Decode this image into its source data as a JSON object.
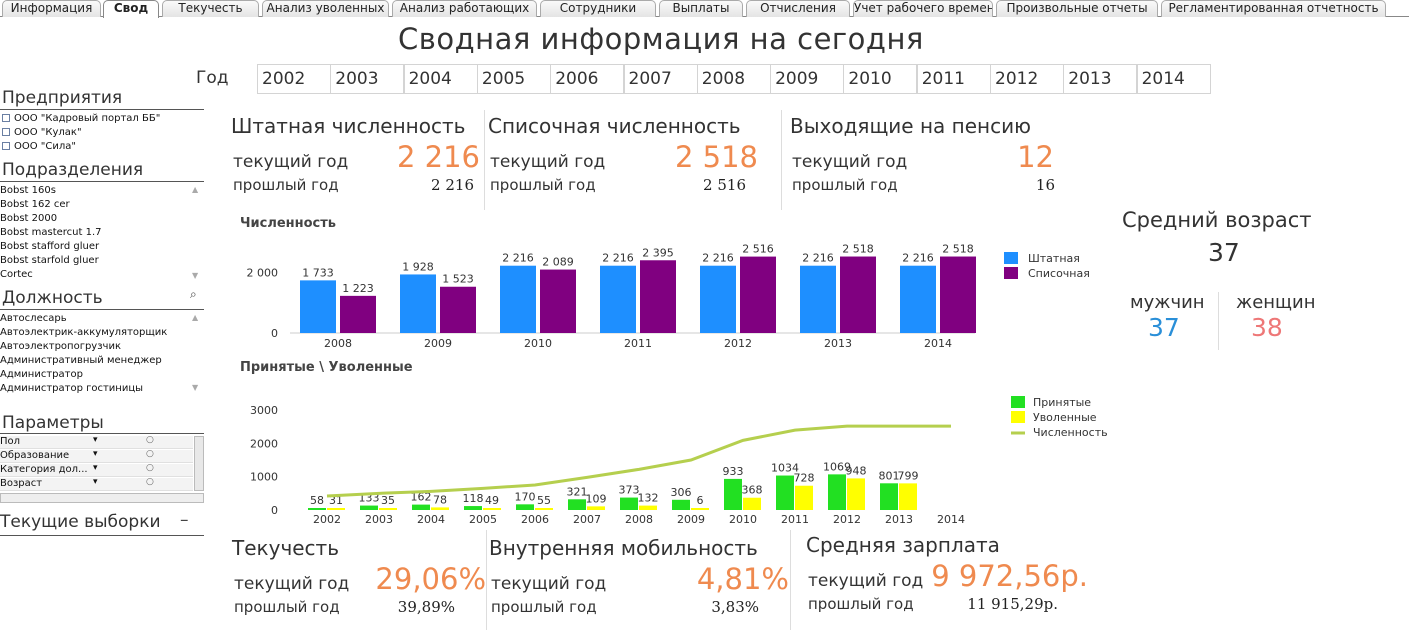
{
  "tabs": [
    "Информация",
    "Свод",
    "Текучесть",
    "Анализ уволенных",
    "Анализ работающих",
    "Сотрудники",
    "Выплаты",
    "Отчисления",
    "Учет рабочего времени",
    "Произвольные отчеты",
    "Регламентированная отчетность"
  ],
  "active_tab": "Свод",
  "title": "Сводная информация на сегодня",
  "year_label": "Год",
  "years": [
    "2002",
    "2003",
    "2004",
    "2005",
    "2006",
    "2007",
    "2008",
    "2009",
    "2010",
    "2011",
    "2012",
    "2013",
    "2014"
  ],
  "left_panel": {
    "enterprises_title": "Предприятия",
    "enterprises": [
      "ООО \"Кадровый портал ББ\"",
      "ООО \"Кулак\"",
      "ООО \"Сила\""
    ],
    "departments_title": "Подразделения",
    "departments": [
      "Bobst 160s",
      "Bobst 162 cer",
      "Bobst 2000",
      "Bobst mastercut 1.7",
      "Bobst stafford gluer",
      "Bobst starfold gluer",
      "Cortec"
    ],
    "positions_title": "Должность",
    "positions": [
      "Автослесарь",
      "Автоэлектрик-аккумуляторщик",
      "Автоэлектропогрузчик",
      "Административный менеджер",
      "Администратор",
      "Администратор гостиницы"
    ],
    "params_title": "Параметры",
    "params": [
      "Пол",
      "Образование",
      "Категория дол...",
      "Возраст"
    ],
    "selections_title": "Текущие выборки",
    "selections_toggle": "–"
  },
  "kpi_top": [
    {
      "title": "Штатная численность",
      "cur_label": "текущий год",
      "prev_label": "прошлый год",
      "cur": "2 216",
      "prev": "2 216"
    },
    {
      "title": "Списочная численность",
      "cur_label": "текущий год",
      "prev_label": "прошлый год",
      "cur": "2 518",
      "prev": "2 516"
    },
    {
      "title": "Выходящие на пенсию",
      "cur_label": "текущий год",
      "prev_label": "прошлый год",
      "cur": "12",
      "prev": "16"
    }
  ],
  "avg_age": {
    "title": "Средний возраст",
    "value": "37",
    "men_label": "мужчин",
    "women_label": "женщин",
    "men": "37",
    "women": "38"
  },
  "kpi_bottom": [
    {
      "title": "Текучесть",
      "cur_label": "текущий год",
      "prev_label": "прошлый год",
      "cur": "29,06%",
      "prev": "39,89%"
    },
    {
      "title": "Внутренняя мобильность",
      "cur_label": "текущий год",
      "prev_label": "прошлый год",
      "cur": "4,81%",
      "prev": "3,83%"
    },
    {
      "title": "Средняя зарплата",
      "cur_label": "текущий год",
      "prev_label": "прошлый год",
      "cur": "9 972,56р.",
      "prev": "11 915,29р."
    }
  ],
  "colors": {
    "orange": "#ef8a4f",
    "blue": "#1e8fff",
    "purple": "#800080",
    "green": "#22e022",
    "yellow": "#ffff00",
    "line": "#b5cf4e",
    "men": "#2a8fd8",
    "women": "#ee7777"
  },
  "chart_data": [
    {
      "type": "bar",
      "title": "Численность",
      "categories": [
        "2008",
        "2009",
        "2010",
        "2011",
        "2012",
        "2013",
        "2014"
      ],
      "series": [
        {
          "name": "Штатная",
          "values": [
            1733,
            1928,
            2216,
            2216,
            2216,
            2216,
            2216
          ],
          "labels": [
            "1 733",
            "1 928",
            "2 216",
            "2 216",
            "2 216",
            "2 216",
            "2 216"
          ]
        },
        {
          "name": "Списочная",
          "values": [
            1223,
            1523,
            2089,
            2395,
            2516,
            2518,
            2518
          ],
          "labels": [
            "1 223",
            "1 523",
            "2 089",
            "2 395",
            "2 516",
            "2 518",
            "2 518"
          ]
        }
      ],
      "yticks": [
        "0",
        "2 000"
      ],
      "ylim": [
        0,
        2700
      ],
      "legend": "right"
    },
    {
      "type": "bar",
      "title": "Принятые \\ Уволенные",
      "categories": [
        "2002",
        "2003",
        "2004",
        "2005",
        "2006",
        "2007",
        "2008",
        "2009",
        "2010",
        "2011",
        "2012",
        "2013",
        "2014"
      ],
      "series": [
        {
          "name": "Принятые",
          "values": [
            58,
            133,
            162,
            118,
            170,
            321,
            373,
            306,
            933,
            1034,
            1069,
            801,
            null
          ]
        },
        {
          "name": "Уволенные",
          "values": [
            31,
            35,
            78,
            49,
            55,
            109,
            132,
            6,
            368,
            728,
            948,
            799,
            null
          ]
        },
        {
          "name": "Численность",
          "type": "line",
          "values": [
            420,
            500,
            560,
            650,
            750,
            980,
            1220,
            1500,
            2089,
            2395,
            2516,
            2518,
            2518
          ]
        }
      ],
      "yticks": [
        "0",
        "1000",
        "2000",
        "3000"
      ],
      "ylim": [
        0,
        3000
      ],
      "legend": "right"
    }
  ]
}
